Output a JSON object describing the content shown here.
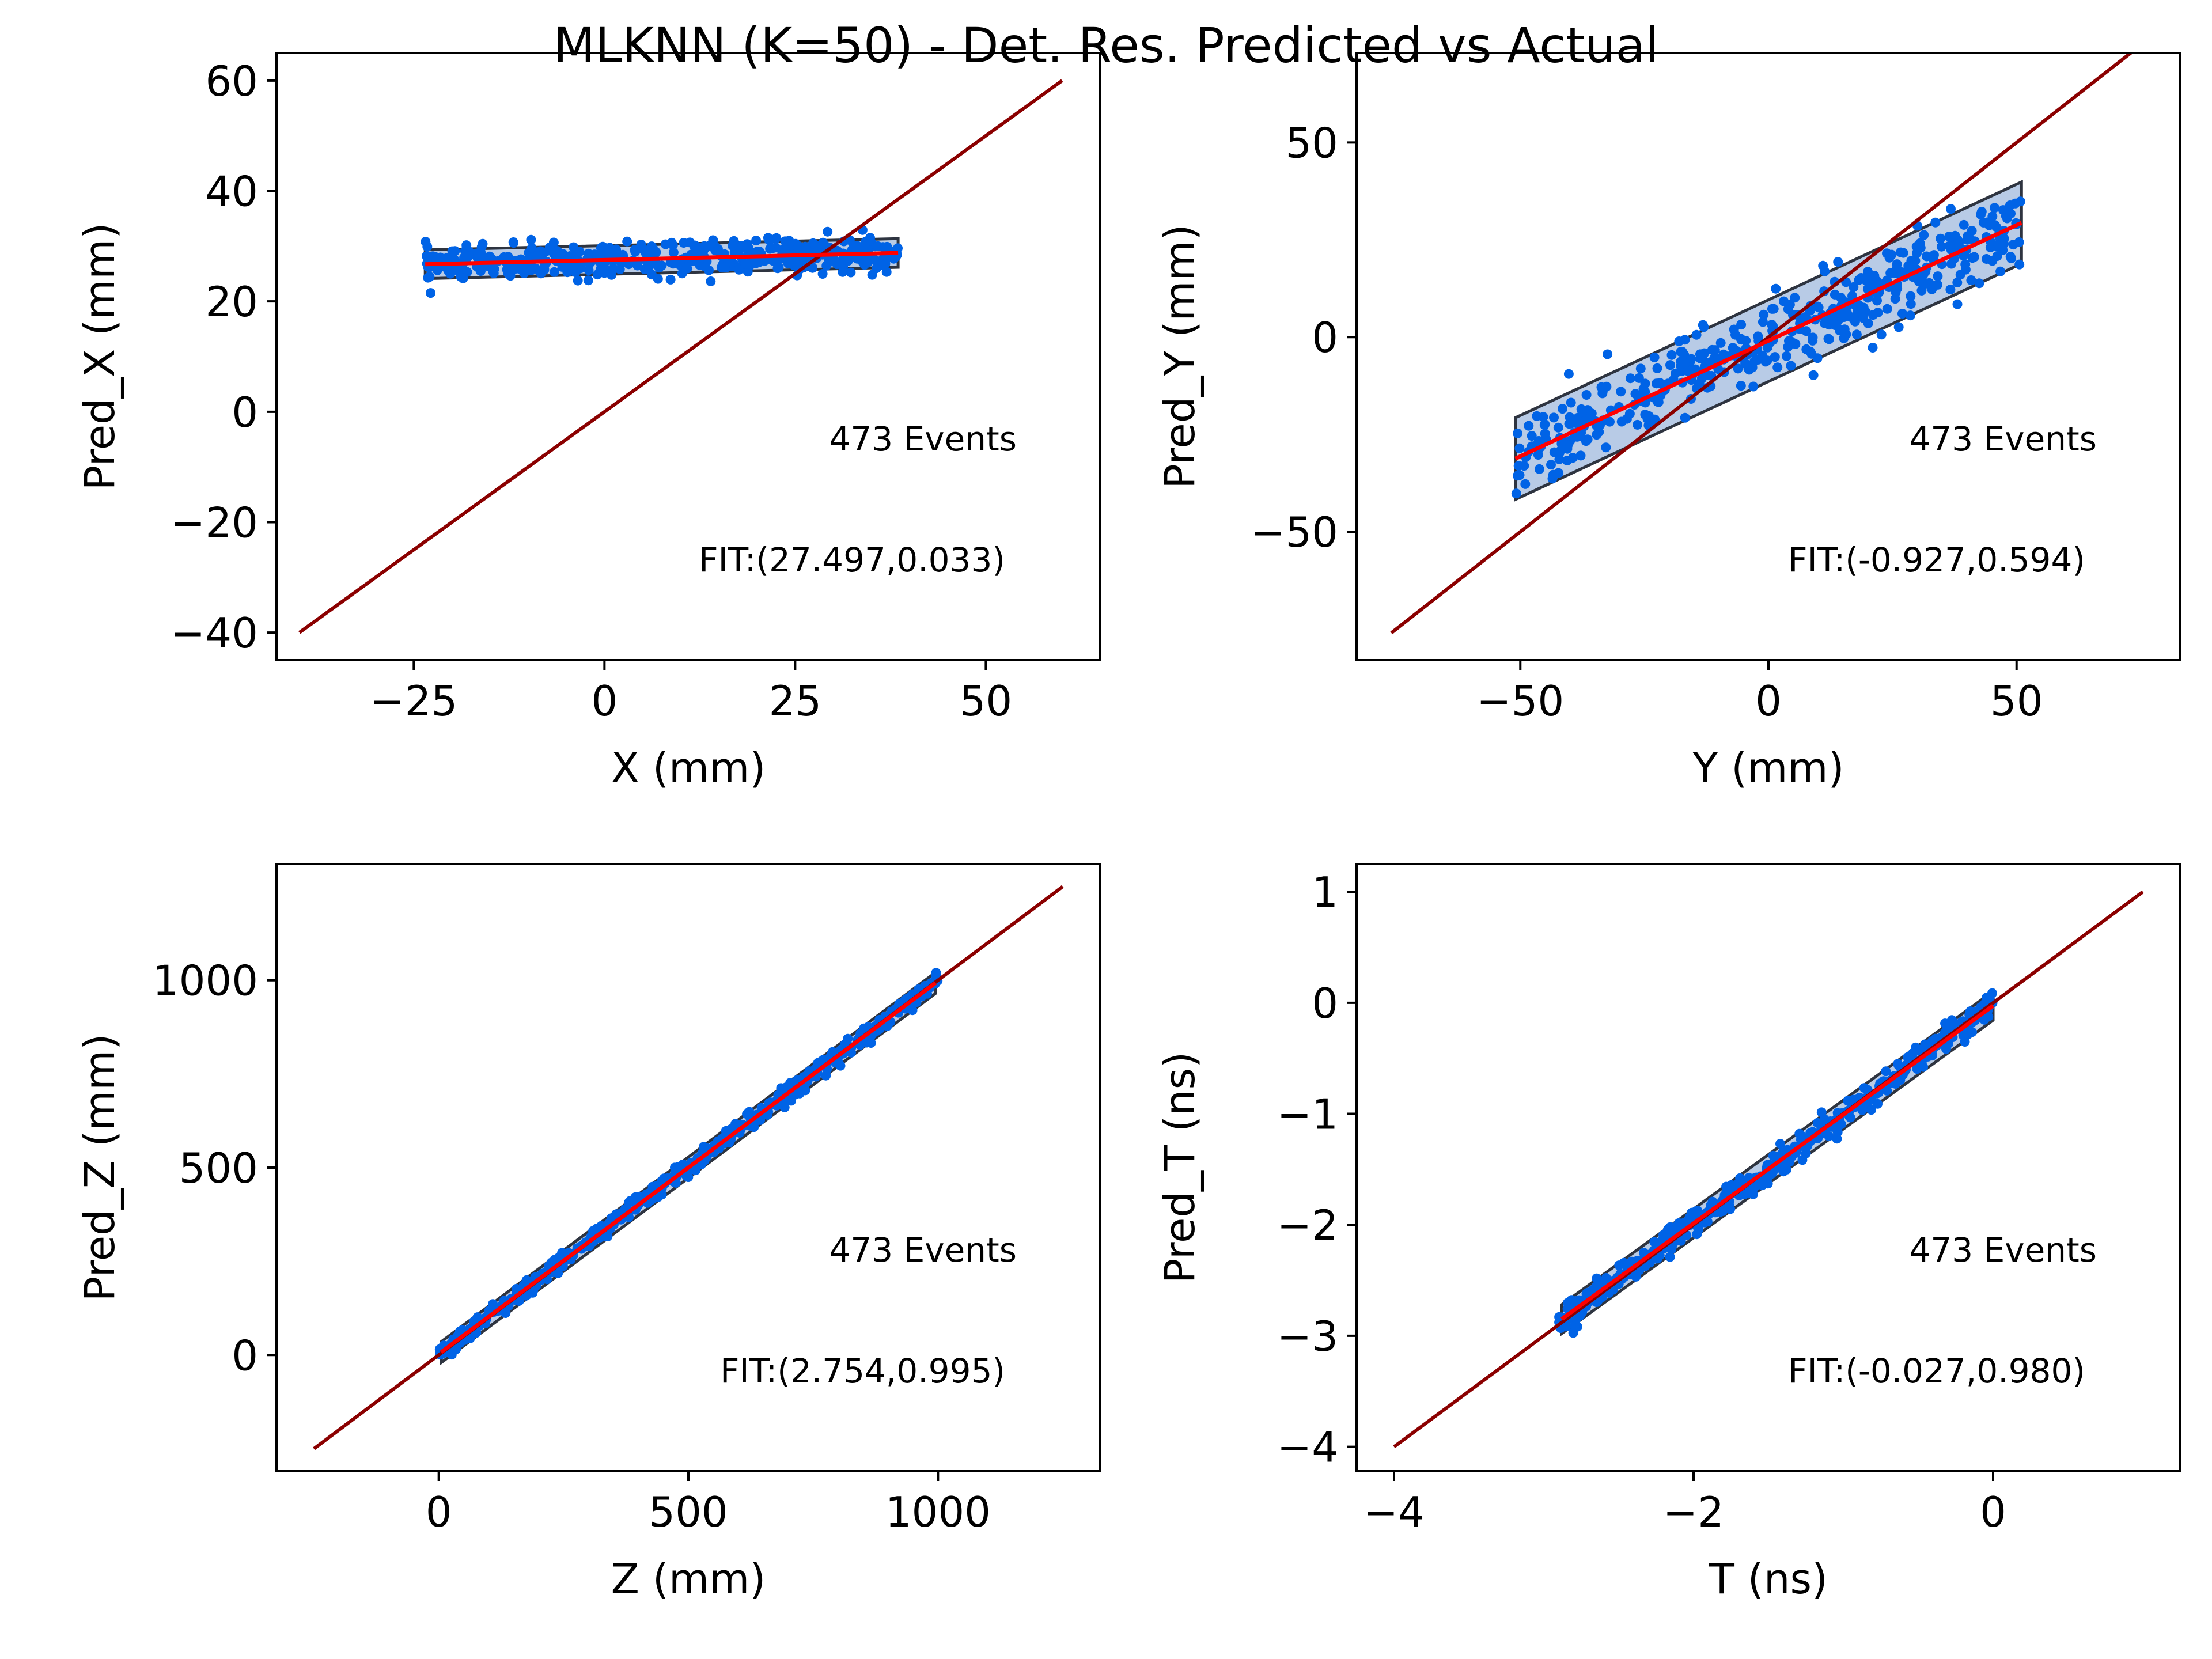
{
  "figure": {
    "title": "MLKNN (K=50) - Det. Res. Predicted vs Actual"
  },
  "colors": {
    "points": "#0063e6",
    "band_fill": "#b8cbe6",
    "band_edge": "#2e3440",
    "fit_line": "#ff0000",
    "identity_line": "#8b0000",
    "axes": "#000000"
  },
  "chart_data": [
    {
      "type": "scatter",
      "xlabel": "X (mm)",
      "ylabel": "Pred_X (mm)",
      "xlim": [
        -43,
        65
      ],
      "ylim": [
        -45,
        65
      ],
      "xticks": [
        -25,
        0,
        25,
        50
      ],
      "xtick_labels": [
        "−25",
        "0",
        "25",
        "50"
      ],
      "yticks": [
        -40,
        -20,
        0,
        20,
        40,
        60
      ],
      "ytick_labels": [
        "−40",
        "−20",
        "0",
        "20",
        "40",
        "60"
      ],
      "events_label": "473 Events",
      "fit_label": "FIT:(27.497,0.033)",
      "fit": {
        "intercept": 27.497,
        "slope": 0.033
      },
      "identity_range": [
        -40,
        60
      ],
      "band": {
        "x_range": [
          -23.5,
          38.5
        ],
        "half_width": 2.6
      },
      "points_x_range": [
        -23.5,
        38.5
      ],
      "points_spread": 1.5,
      "points_count": 473
    },
    {
      "type": "scatter",
      "xlabel": "Y (mm)",
      "ylabel": "Pred_Y (mm)",
      "xlim": [
        -83,
        83
      ],
      "ylim": [
        -83,
        73
      ],
      "xticks": [
        -50,
        0,
        50
      ],
      "xtick_labels": [
        "−50",
        "0",
        "50"
      ],
      "yticks": [
        -50,
        0,
        50
      ],
      "ytick_labels": [
        "−50",
        "0",
        "50"
      ],
      "events_label": "473 Events",
      "fit_label": "FIT:(-0.927,0.594)",
      "fit": {
        "intercept": -0.927,
        "slope": 0.594
      },
      "identity_range": [
        -76,
        76
      ],
      "band": {
        "x_range": [
          -51,
          51
        ],
        "half_width": 10.5
      },
      "points_x_range": [
        -51,
        51
      ],
      "points_spread": 5.0,
      "points_count": 473
    },
    {
      "type": "scatter",
      "xlabel": "Z (mm)",
      "ylabel": "Pred_Z (mm)",
      "xlim": [
        -325,
        1325
      ],
      "ylim": [
        -310,
        1310
      ],
      "xticks": [
        0,
        500,
        1000
      ],
      "xtick_labels": [
        "0",
        "500",
        "1000"
      ],
      "yticks": [
        0,
        500,
        1000
      ],
      "ytick_labels": [
        "0",
        "500",
        "1000"
      ],
      "events_label": "473 Events",
      "fit_label": "FIT:(2.754,0.995)",
      "fit": {
        "intercept": 2.754,
        "slope": 0.995
      },
      "identity_range": [
        -250,
        1250
      ],
      "band": {
        "x_range": [
          5,
          995
        ],
        "half_width": 28
      },
      "points_x_range": [
        0,
        1000
      ],
      "points_spread": 12,
      "points_count": 473
    },
    {
      "type": "scatter",
      "xlabel": "T (ns)",
      "ylabel": "Pred_T (ns)",
      "xlim": [
        -4.25,
        1.25
      ],
      "ylim": [
        -4.22,
        1.25
      ],
      "xticks": [
        -4,
        -2,
        0
      ],
      "xtick_labels": [
        "−4",
        "−2",
        "0"
      ],
      "yticks": [
        -4,
        -3,
        -2,
        -1,
        0,
        1
      ],
      "ytick_labels": [
        "−4",
        "−3",
        "−2",
        "−1",
        "0",
        "1"
      ],
      "events_label": "473 Events",
      "fit_label": "FIT:(-0.027,0.980)",
      "fit": {
        "intercept": -0.027,
        "slope": 0.98
      },
      "identity_range": [
        -4,
        1
      ],
      "band": {
        "x_range": [
          -2.88,
          0
        ],
        "half_width": 0.13
      },
      "points_x_range": [
        -2.9,
        0
      ],
      "points_spread": 0.06,
      "points_count": 473
    }
  ]
}
